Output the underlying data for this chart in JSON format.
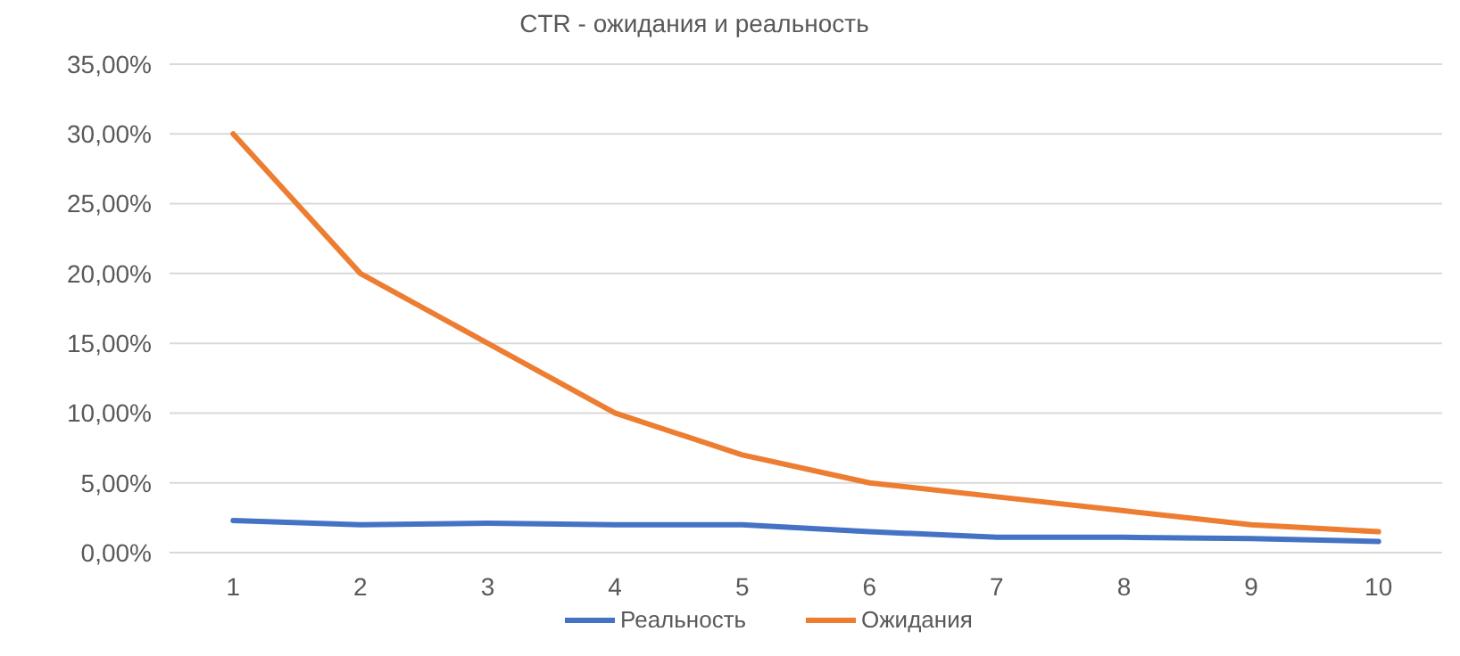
{
  "chart_data": {
    "type": "line",
    "title": "CTR - ожидания и реальность",
    "categories": [
      "1",
      "2",
      "3",
      "4",
      "5",
      "6",
      "7",
      "8",
      "9",
      "10"
    ],
    "series": [
      {
        "name": "Реальность",
        "color": "#4472c4",
        "values": [
          2.3,
          2.0,
          2.1,
          2.0,
          2.0,
          1.5,
          1.1,
          1.1,
          1.0,
          0.8
        ]
      },
      {
        "name": "Ожидания",
        "color": "#ed7d31",
        "values": [
          30,
          20,
          15,
          10,
          7,
          5,
          4,
          3,
          2,
          1.5
        ]
      }
    ],
    "ylim": [
      0,
      35
    ],
    "yticks": [
      {
        "value": 0,
        "label": "0,00%"
      },
      {
        "value": 5,
        "label": "5,00%"
      },
      {
        "value": 10,
        "label": "10,00%"
      },
      {
        "value": 15,
        "label": "15,00%"
      },
      {
        "value": 20,
        "label": "20,00%"
      },
      {
        "value": 25,
        "label": "25,00%"
      },
      {
        "value": 30,
        "label": "30,00%"
      },
      {
        "value": 35,
        "label": "35,00%"
      }
    ],
    "grid": "y",
    "legend": "bottom",
    "marker": "none",
    "line_style": "solid"
  }
}
